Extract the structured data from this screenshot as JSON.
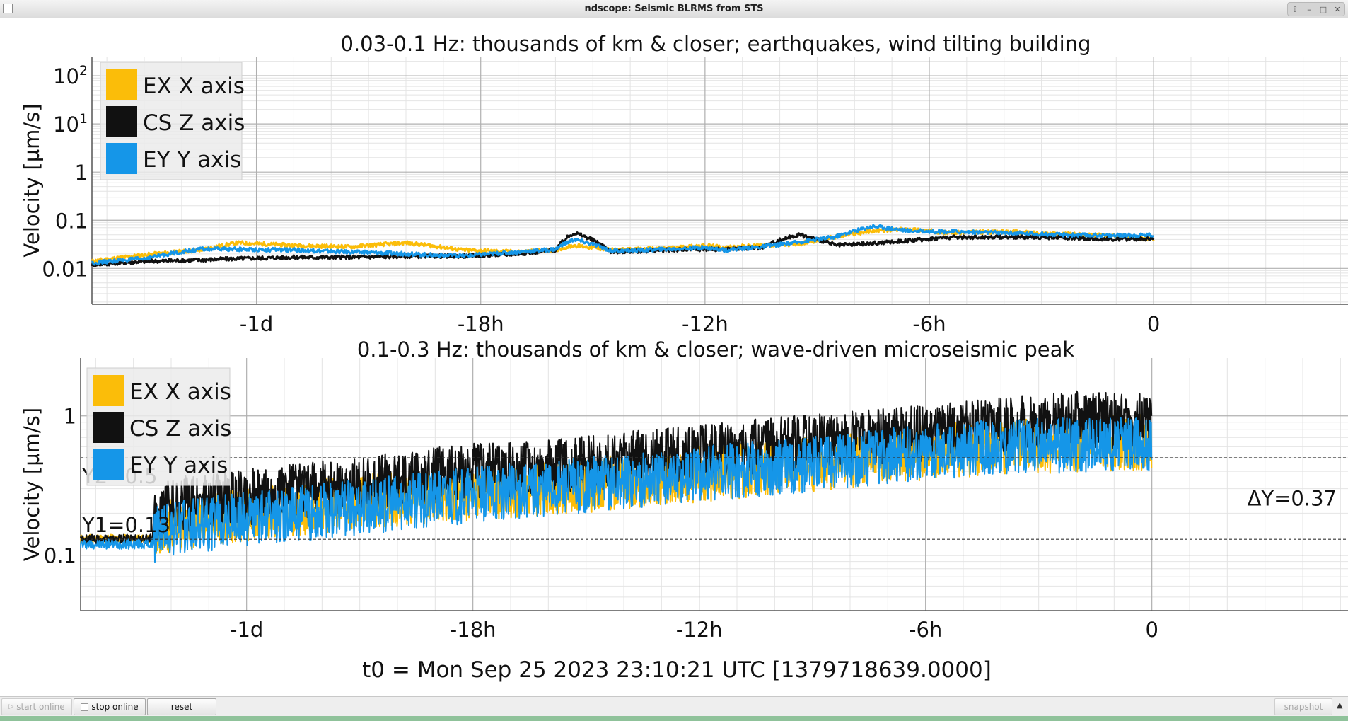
{
  "window": {
    "title": "ndscope: Seismic BLRMS from STS"
  },
  "toolbar": {
    "start_online": "start online",
    "stop_online": "stop online",
    "reset": "reset",
    "snapshot": "snapshot"
  },
  "t0_label": "t0 = Mon Sep 25 2023 23:10:21 UTC [1379718639.0000]",
  "colors": {
    "ex": "#fbbd09",
    "cs": "#111111",
    "ey": "#1596e8"
  },
  "chart_data": [
    {
      "type": "line",
      "title": "0.03-0.1 Hz: thousands of km & closer; earthquakes, wind tilting building",
      "ylabel": "Velocity [µm/s]",
      "xlabel": "",
      "y_scale": "log",
      "ylim": [
        0.0018,
        250
      ],
      "xlim": [
        -28.4,
        5.2
      ],
      "x_unit": "hours relative to t0",
      "x_ticks": [
        {
          "v": -24,
          "label": "-1d"
        },
        {
          "v": -18,
          "label": "-18h"
        },
        {
          "v": -12,
          "label": "-12h"
        },
        {
          "v": -6,
          "label": "-6h"
        },
        {
          "v": 0,
          "label": "0"
        }
      ],
      "y_ticks": [
        {
          "v": 0.01,
          "label": "0.01"
        },
        {
          "v": 0.1,
          "label": "0.1"
        },
        {
          "v": 1,
          "label": "1"
        },
        {
          "v": 10,
          "base": "10",
          "exp": "1"
        },
        {
          "v": 100,
          "base": "10",
          "exp": "2"
        }
      ],
      "grid": true,
      "legend": "top-left",
      "series": [
        {
          "name": "EX X axis",
          "color": "#fbbd09",
          "x": [
            -28.4,
            -27,
            -25.5,
            -24.5,
            -23,
            -21.5,
            -20,
            -18.5,
            -17,
            -16,
            -15.5,
            -14.5,
            -13,
            -12,
            -11.5,
            -10.5,
            -9.5,
            -8.5,
            -7.5,
            -6.5,
            -5.5,
            -4,
            -2.5,
            -1,
            0
          ],
          "y": [
            0.014,
            0.019,
            0.024,
            0.034,
            0.03,
            0.028,
            0.034,
            0.024,
            0.022,
            0.024,
            0.03,
            0.024,
            0.026,
            0.03,
            0.027,
            0.03,
            0.032,
            0.045,
            0.06,
            0.065,
            0.055,
            0.058,
            0.052,
            0.047,
            0.04
          ]
        },
        {
          "name": "CS Z axis",
          "color": "#111111",
          "x": [
            -28.4,
            -27,
            -25.5,
            -24.5,
            -23,
            -21.5,
            -20,
            -18.5,
            -17,
            -16,
            -15.5,
            -14.5,
            -13,
            -12,
            -11.5,
            -10.5,
            -9.5,
            -8.5,
            -7.5,
            -6.5,
            -5.5,
            -4,
            -2.5,
            -1,
            0
          ],
          "y": [
            0.012,
            0.014,
            0.015,
            0.016,
            0.017,
            0.017,
            0.018,
            0.018,
            0.02,
            0.024,
            0.055,
            0.022,
            0.024,
            0.025,
            0.025,
            0.027,
            0.05,
            0.03,
            0.033,
            0.038,
            0.044,
            0.045,
            0.044,
            0.04,
            0.042
          ]
        },
        {
          "name": "EY Y axis",
          "color": "#1596e8",
          "x": [
            -28.4,
            -27,
            -25.5,
            -24.5,
            -23,
            -21.5,
            -20,
            -18.5,
            -17,
            -16,
            -15.5,
            -14.5,
            -13,
            -12,
            -11.5,
            -10.5,
            -9.5,
            -8.5,
            -7.5,
            -6.5,
            -5.5,
            -4,
            -2.5,
            -1,
            0
          ],
          "y": [
            0.013,
            0.016,
            0.025,
            0.025,
            0.024,
            0.022,
            0.02,
            0.018,
            0.022,
            0.025,
            0.04,
            0.023,
            0.025,
            0.027,
            0.024,
            0.028,
            0.035,
            0.045,
            0.075,
            0.06,
            0.058,
            0.055,
            0.05,
            0.048,
            0.05
          ]
        }
      ]
    },
    {
      "type": "line",
      "title": "0.1-0.3 Hz: thousands of km & closer; wave-driven microseismic peak",
      "ylabel": "Velocity [µm/s]",
      "xlabel": "",
      "y_scale": "log",
      "ylim": [
        0.04,
        2.6
      ],
      "xlim": [
        -28.4,
        5.2
      ],
      "x_unit": "hours relative to t0",
      "x_ticks": [
        {
          "v": -24,
          "label": "-1d"
        },
        {
          "v": -18,
          "label": "-18h"
        },
        {
          "v": -12,
          "label": "-12h"
        },
        {
          "v": -6,
          "label": "-6h"
        },
        {
          "v": 0,
          "label": "0"
        }
      ],
      "y_ticks": [
        {
          "v": 0.1,
          "label": "0.1"
        },
        {
          "v": 1,
          "label": "1"
        }
      ],
      "grid": true,
      "legend": "top-left",
      "series": [
        {
          "name": "EX X axis",
          "color": "#fbbd09",
          "x": [
            -28.4,
            -26.5,
            -26.4,
            -24,
            -21,
            -18,
            -15,
            -12,
            -9,
            -6,
            -4,
            -2,
            0
          ],
          "y": [
            0.13,
            0.13,
            0.16,
            0.2,
            0.24,
            0.28,
            0.32,
            0.38,
            0.45,
            0.55,
            0.6,
            0.62,
            0.65
          ]
        },
        {
          "name": "CS Z axis",
          "color": "#111111",
          "x": [
            -28.4,
            -26.5,
            -26.4,
            -24,
            -21,
            -18,
            -15,
            -12,
            -9,
            -6,
            -4,
            -2,
            0
          ],
          "y": [
            0.13,
            0.13,
            0.22,
            0.26,
            0.32,
            0.4,
            0.45,
            0.55,
            0.65,
            0.75,
            0.85,
            0.95,
            0.9
          ]
        },
        {
          "name": "EY Y axis",
          "color": "#1596e8",
          "x": [
            -28.4,
            -26.5,
            -26.4,
            -24,
            -21,
            -18,
            -15,
            -12,
            -9,
            -6,
            -4,
            -2,
            0
          ],
          "y": [
            0.12,
            0.12,
            0.15,
            0.18,
            0.22,
            0.27,
            0.32,
            0.38,
            0.45,
            0.55,
            0.6,
            0.62,
            0.64
          ]
        }
      ],
      "cursors": {
        "y1": 0.13,
        "y2": 0.5,
        "y1_label": "Y1=0.13",
        "y2_label": "Y2=0.5",
        "dy_label": "ΔY=0.37"
      }
    }
  ]
}
